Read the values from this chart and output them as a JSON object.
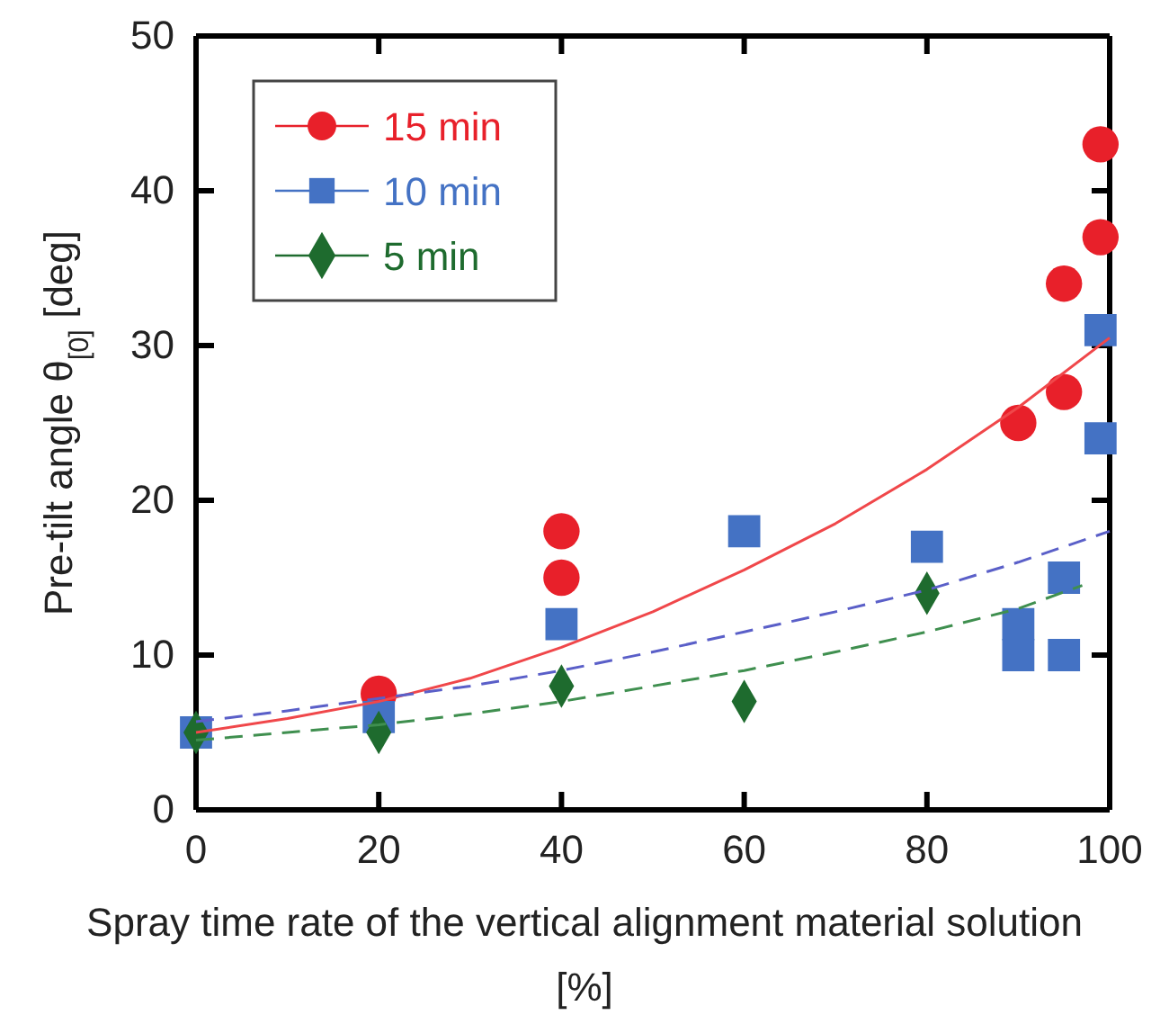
{
  "chart_data": {
    "type": "scatter",
    "xlabel": "Spray time rate of the vertical alignment material solution [%]",
    "ylabel": "Pre-tilt angle θ$_{[0]}$ [deg]",
    "xlim": [
      0,
      100
    ],
    "ylim": [
      0,
      50
    ],
    "xticks": [
      0,
      20,
      40,
      60,
      80,
      100
    ],
    "yticks": [
      0,
      10,
      20,
      30,
      40,
      50
    ],
    "grid": false,
    "legend": "top left",
    "series": [
      {
        "name": "15 min",
        "marker": "circle",
        "color": "#e8202a",
        "x": [
          20,
          40,
          40,
          90,
          95,
          95,
          99,
          99
        ],
        "values": [
          7.5,
          15,
          18,
          25,
          27,
          34,
          37,
          43
        ]
      },
      {
        "name": "10 min",
        "marker": "square",
        "color": "#4472c4",
        "x": [
          0,
          20,
          40,
          60,
          80,
          90,
          90,
          95,
          95,
          99,
          99
        ],
        "values": [
          5,
          6,
          12,
          18,
          17,
          10,
          12,
          10,
          15,
          24,
          31
        ]
      },
      {
        "name": "5 min",
        "marker": "diamond",
        "color": "#1e6b2e",
        "x": [
          0,
          20,
          40,
          60,
          80
        ],
        "values": [
          5,
          5,
          8,
          7,
          14
        ]
      },
      {
        "type": "line",
        "line_style": "solid",
        "color": "#f0474a",
        "x": [
          0,
          10,
          20,
          30,
          40,
          50,
          60,
          70,
          80,
          90,
          100
        ],
        "values": [
          5,
          5.9,
          7,
          8.5,
          10.5,
          12.8,
          15.5,
          18.5,
          22,
          26,
          30.5
        ]
      },
      {
        "type": "line",
        "line_style": "dashed",
        "color": "#5a5fc8",
        "x": [
          0,
          10,
          20,
          30,
          40,
          50,
          60,
          70,
          80,
          90,
          100
        ],
        "values": [
          5.7,
          6.4,
          7.2,
          8,
          9,
          10.2,
          11.5,
          12.8,
          14.2,
          16,
          18
        ]
      },
      {
        "type": "line",
        "line_style": "dashed",
        "color": "#3f8f4f",
        "x": [
          0,
          10,
          20,
          30,
          40,
          50,
          60,
          70,
          80,
          90,
          97
        ],
        "values": [
          4.5,
          5,
          5.5,
          6.2,
          7,
          8,
          9,
          10.2,
          11.5,
          13,
          14.5
        ]
      }
    ]
  }
}
